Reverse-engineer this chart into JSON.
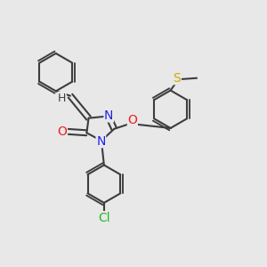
{
  "background_color": "#e8e8e8",
  "bond_color": "#3d3d3d",
  "bond_width": 1.5,
  "atom_colors": {
    "N": "#2020ee",
    "O": "#ee2020",
    "S": "#ccaa00",
    "Cl": "#22bb22",
    "H": "#3d3d3d",
    "C": "#3d3d3d"
  },
  "font_size": 10,
  "font_size_small": 8
}
